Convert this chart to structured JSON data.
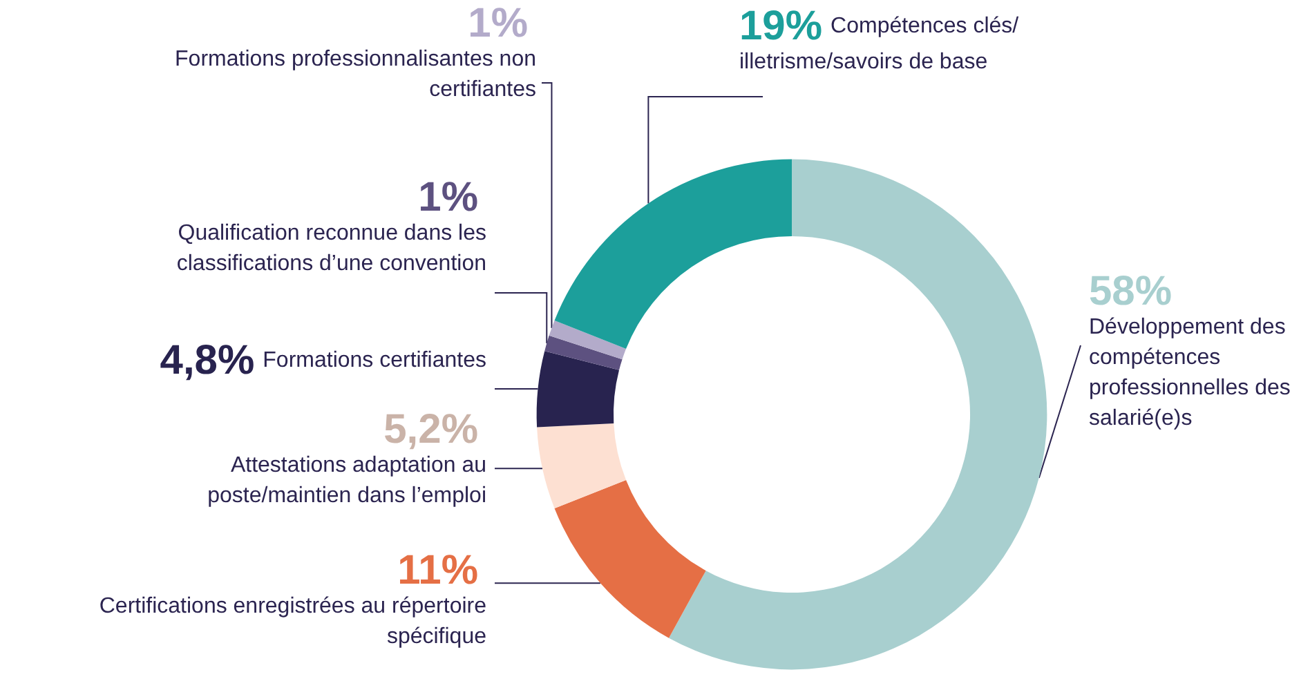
{
  "chart_data": {
    "type": "donut",
    "categories": [
      "Développement des compétences professionnelles des salarié(e)s",
      "Certifications enregistrées au répertoire spécifique",
      "Attestations adaptation au poste/maintien dans l’emploi",
      "Formations certifiantes",
      "Qualification reconnue dans les classifications d’une convention",
      "Formations professionnalisantes non certifiantes",
      "Compétences clés/ illetrisme/savoirs de base"
    ],
    "values": [
      58,
      11,
      5.2,
      4.8,
      1,
      1,
      19
    ],
    "value_labels": [
      "58%",
      "11%",
      "5,2%",
      "4,8%",
      "1%",
      "1%",
      "19%"
    ],
    "colors": [
      "#a8cfcf",
      "#e56f45",
      "#fde0d2",
      "#28234f",
      "#5d5180",
      "#b3abca",
      "#1c9f9b"
    ]
  }
}
